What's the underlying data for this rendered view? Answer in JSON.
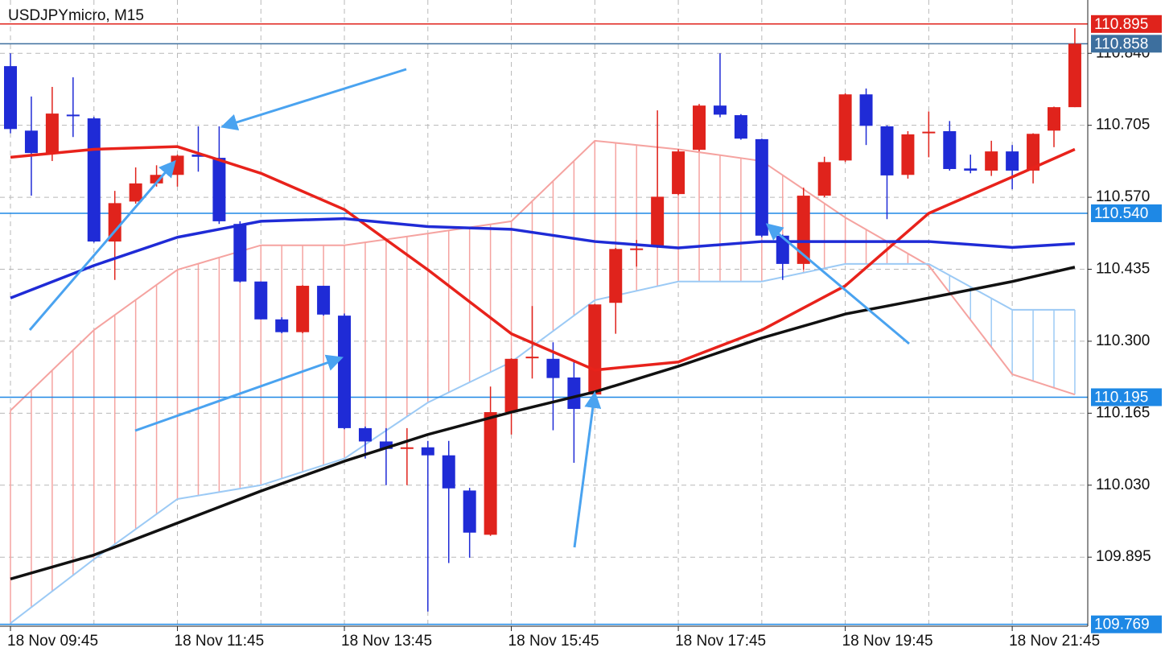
{
  "chart_data": {
    "type": "candlestick",
    "title": "USDJPYmicro, M15",
    "categories": [
      "18 Nov 09:45",
      null,
      null,
      null,
      null,
      null,
      null,
      null,
      "18 Nov 11:45",
      null,
      null,
      null,
      null,
      null,
      null,
      null,
      "18 Nov 13:45",
      null,
      null,
      null,
      null,
      null,
      null,
      null,
      "18 Nov 15:45",
      null,
      null,
      null,
      null,
      null,
      null,
      null,
      "18 Nov 17:45",
      null,
      null,
      null,
      null,
      null,
      null,
      null,
      "18 Nov 19:45",
      null,
      null,
      null,
      null,
      null,
      null,
      null,
      "18 Nov 21:45",
      null,
      null,
      null
    ],
    "open": [
      110.816,
      110.695,
      110.653,
      110.725,
      110.718,
      110.487,
      110.562,
      110.596,
      110.612,
      110.65,
      110.644,
      110.52,
      110.412,
      110.341,
      110.317,
      110.404,
      110.348,
      110.137,
      110.112,
      110.1,
      110.101,
      110.086,
      110.02,
      109.937,
      110.167,
      110.27,
      110.267,
      110.232,
      110.2,
      110.372,
      110.473,
      110.477,
      110.576,
      110.659,
      110.742,
      110.724,
      110.679,
      110.498,
      110.445,
      110.573,
      110.639,
      110.763,
      110.703,
      110.612,
      110.692,
      110.694,
      110.624,
      110.62,
      110.656,
      110.62,
      110.695,
      110.739
    ],
    "high": [
      110.84,
      110.759,
      110.777,
      110.795,
      110.721,
      110.582,
      110.626,
      110.63,
      110.65,
      110.703,
      110.703,
      110.525,
      110.412,
      110.345,
      110.405,
      110.404,
      110.352,
      110.14,
      110.137,
      110.137,
      110.113,
      110.113,
      110.025,
      110.215,
      110.268,
      110.366,
      110.298,
      110.261,
      110.37,
      110.475,
      110.49,
      110.733,
      110.66,
      110.745,
      110.84,
      110.726,
      110.68,
      110.5,
      110.588,
      110.646,
      110.765,
      110.774,
      110.705,
      110.694,
      110.731,
      110.713,
      110.65,
      110.676,
      110.668,
      110.69,
      110.74,
      110.887
    ],
    "low": [
      110.69,
      110.573,
      110.638,
      110.683,
      110.485,
      110.415,
      110.558,
      110.59,
      110.59,
      110.618,
      110.52,
      110.41,
      110.341,
      110.315,
      110.315,
      110.348,
      110.135,
      110.08,
      110.03,
      110.03,
      109.793,
      109.884,
      109.894,
      109.935,
      110.125,
      110.23,
      110.133,
      110.072,
      110.185,
      110.314,
      110.44,
      110.475,
      110.574,
      110.656,
      110.72,
      110.678,
      110.495,
      110.415,
      110.434,
      110.57,
      110.636,
      110.668,
      110.529,
      110.605,
      110.645,
      110.62,
      110.615,
      110.61,
      110.585,
      110.596,
      110.664,
      110.739
    ],
    "close": [
      110.698,
      110.653,
      110.727,
      110.722,
      110.487,
      110.559,
      110.596,
      110.612,
      110.648,
      110.646,
      110.525,
      110.412,
      110.341,
      110.317,
      110.404,
      110.35,
      110.137,
      110.112,
      110.098,
      110.101,
      110.086,
      110.024,
      109.941,
      110.167,
      110.267,
      110.271,
      110.231,
      110.173,
      110.369,
      110.473,
      110.474,
      110.571,
      110.656,
      110.742,
      110.725,
      110.68,
      110.498,
      110.445,
      110.573,
      110.636,
      110.763,
      110.704,
      110.611,
      110.688,
      110.693,
      110.623,
      110.62,
      110.656,
      110.62,
      110.689,
      110.739,
      110.858
    ],
    "up_color": "#e0231c",
    "down_color": "#1f2bd6",
    "series": [
      {
        "color": "#e8221b",
        "x": [
          0,
          4,
          8,
          12,
          16,
          20,
          24,
          28,
          32,
          36,
          40,
          44,
          48,
          51
        ],
        "values": [
          110.645,
          110.66,
          110.665,
          110.615,
          110.547,
          110.434,
          110.314,
          110.246,
          110.261,
          110.321,
          110.404,
          110.54,
          110.608,
          110.66
        ]
      },
      {
        "color": "#1f2bd6",
        "x": [
          0,
          4,
          8,
          12,
          16,
          20,
          24,
          28,
          32,
          36,
          40,
          44,
          48,
          51
        ],
        "values": [
          110.381,
          110.442,
          110.495,
          110.525,
          110.53,
          110.515,
          110.51,
          110.487,
          110.475,
          110.487,
          110.487,
          110.487,
          110.476,
          110.483
        ]
      },
      {
        "color": "#111111",
        "x": [
          0,
          4,
          8,
          12,
          16,
          20,
          24,
          28,
          32,
          36,
          40,
          44,
          48,
          51
        ],
        "values": [
          109.854,
          109.899,
          109.959,
          110.019,
          110.075,
          110.125,
          110.167,
          110.205,
          110.253,
          110.306,
          110.351,
          110.381,
          110.412,
          110.439
        ]
      }
    ],
    "cloud": {
      "x": [
        0,
        4,
        8,
        12,
        16,
        20,
        24,
        28,
        32,
        36,
        40,
        44,
        48,
        51
      ],
      "span_a": [
        110.17,
        110.321,
        110.434,
        110.48,
        110.48,
        110.502,
        110.525,
        110.676,
        110.66,
        110.638,
        110.532,
        110.442,
        110.238,
        110.2
      ],
      "span_b": [
        109.771,
        109.891,
        110.004,
        110.03,
        110.08,
        110.185,
        110.261,
        110.377,
        110.412,
        110.412,
        110.445,
        110.445,
        110.359,
        110.359
      ],
      "color_a": "#f5a3a0",
      "color_b": "#9ccaf5"
    },
    "hlines": [
      {
        "value": 110.895,
        "color": "#e0231c"
      },
      {
        "value": 110.858,
        "color": "#3d6f9e"
      },
      {
        "value": 110.54,
        "label": "110.540",
        "color": "#1e88e5"
      },
      {
        "value": 110.195,
        "color": "#1e88e5"
      },
      {
        "value": 109.769,
        "color": "#1e88e5"
      }
    ],
    "ylim": [
      109.77,
      110.94
    ],
    "yticks": [
      {
        "value": 110.84,
        "label": "110.840"
      },
      110.705,
      {
        "value": 110.57,
        "label": "110.570"
      },
      110.435,
      {
        "value": 110.3,
        "label": "110.300"
      },
      110.165,
      {
        "value": 110.03,
        "label": "110.030"
      },
      109.895
    ],
    "grid": true
  }
}
